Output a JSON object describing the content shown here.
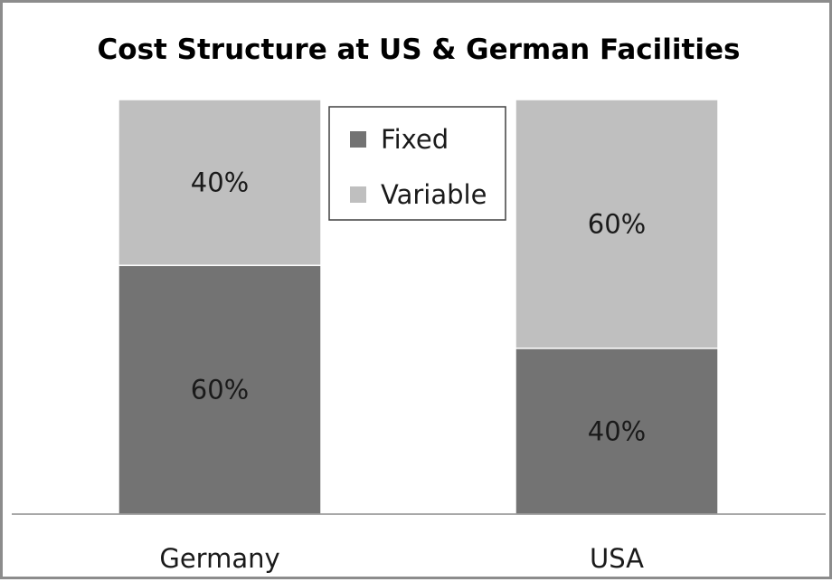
{
  "chart_data": {
    "type": "bar",
    "stacked": true,
    "percent_stacked": true,
    "title": "Cost Structure at US & German Facilities",
    "categories": [
      "Germany",
      "USA"
    ],
    "series": [
      {
        "name": "Fixed",
        "values": [
          60,
          40
        ],
        "labels": [
          "60%",
          "40%"
        ],
        "color": "#737373"
      },
      {
        "name": "Variable",
        "values": [
          40,
          60
        ],
        "labels": [
          "40%",
          "60%"
        ],
        "color": "#bfbfbf"
      }
    ],
    "ylim": [
      0,
      100
    ],
    "grid": false,
    "legend": "top-center"
  }
}
